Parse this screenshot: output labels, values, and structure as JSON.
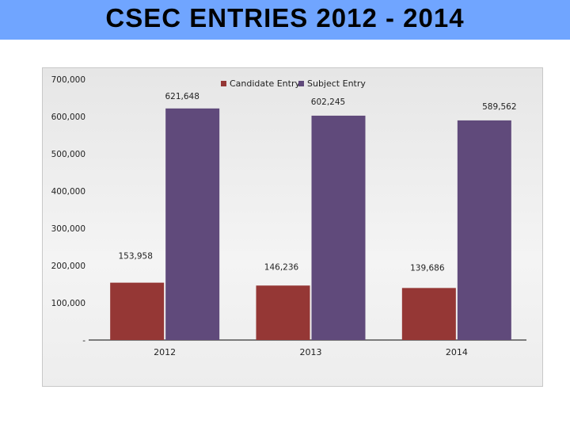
{
  "header": {
    "title": "CSEC ENTRIES 2012 - 2014"
  },
  "chart_data": {
    "type": "bar",
    "title": "CSEC ENTRIES 2012 - 2014",
    "categories": [
      "2012",
      "2013",
      "2014"
    ],
    "series": [
      {
        "name": "Candidate Entry",
        "color": "#953735",
        "values": [
          153958,
          146236,
          139686
        ],
        "labels": [
          "153,958",
          "146,236",
          "139,686"
        ]
      },
      {
        "name": "Subject Entry",
        "color": "#604a7b",
        "values": [
          621648,
          602245,
          589562
        ],
        "labels": [
          "621,648",
          "602,245",
          "589,562"
        ]
      }
    ],
    "ylim": [
      0,
      700000
    ],
    "yticks": [
      0,
      100000,
      200000,
      300000,
      400000,
      500000,
      600000,
      700000
    ],
    "ytick_labels": [
      "-",
      "100,000",
      "200,000",
      "300,000",
      "400,000",
      "500,000",
      "600,000",
      "700,000"
    ],
    "xlabel": "",
    "ylabel": "",
    "legend": "top-center",
    "grid": false
  }
}
